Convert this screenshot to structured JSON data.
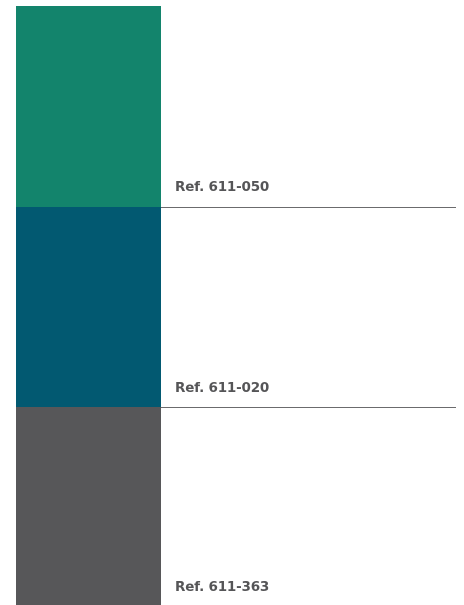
{
  "swatches": [
    {
      "color": "#13846c",
      "reference": "Ref. 611-050"
    },
    {
      "color": "#025971",
      "reference": "Ref. 611-020"
    },
    {
      "color": "#575759",
      "reference": "Ref. 611-363"
    }
  ]
}
